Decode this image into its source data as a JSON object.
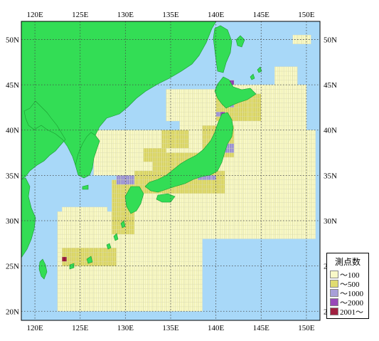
{
  "axes": {
    "lon_ticks": [
      "120E",
      "125E",
      "130E",
      "135E",
      "140E",
      "145E",
      "150E"
    ],
    "lat_ticks": [
      "50N",
      "45N",
      "40N",
      "35N",
      "30N",
      "25N",
      "20N"
    ]
  },
  "legend": {
    "title": "測点数",
    "items": [
      {
        "label": "～100",
        "color": "#f8f8c8"
      },
      {
        "label": "～500",
        "color": "#e0dc70"
      },
      {
        "label": "～1000",
        "color": "#a8a0d8"
      },
      {
        "label": "～2000",
        "color": "#9848b8"
      },
      {
        "label": "2001～",
        "color": "#a02040"
      }
    ]
  },
  "colors": {
    "land": "#33dd55",
    "sea": "#a8d8f8",
    "grid": "#444444"
  }
}
